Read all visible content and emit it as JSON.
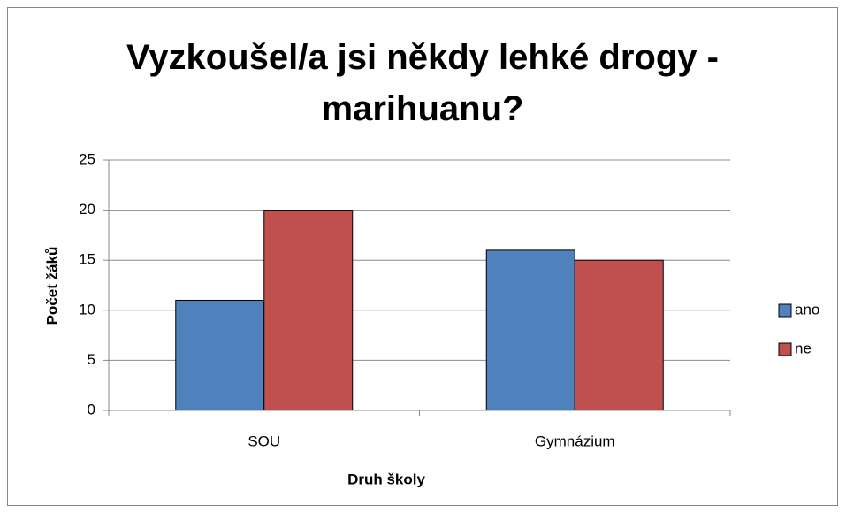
{
  "chart_data": {
    "type": "bar",
    "title": "Vyzkoušel/a jsi někdy lehké drogy - marihuanu?",
    "x_label": "Druh školy",
    "y_label": "Počet žáků",
    "categories": [
      "SOU",
      "Gymnázium"
    ],
    "series": [
      {
        "name": "ano",
        "color": "#4f81bd",
        "values": [
          11,
          16
        ]
      },
      {
        "name": "ne",
        "color": "#c0504d",
        "values": [
          20,
          15
        ]
      }
    ],
    "ylim": [
      0,
      25
    ],
    "yticks": [
      0,
      5,
      10,
      15,
      20,
      25
    ],
    "grid": true,
    "legend": "right"
  }
}
